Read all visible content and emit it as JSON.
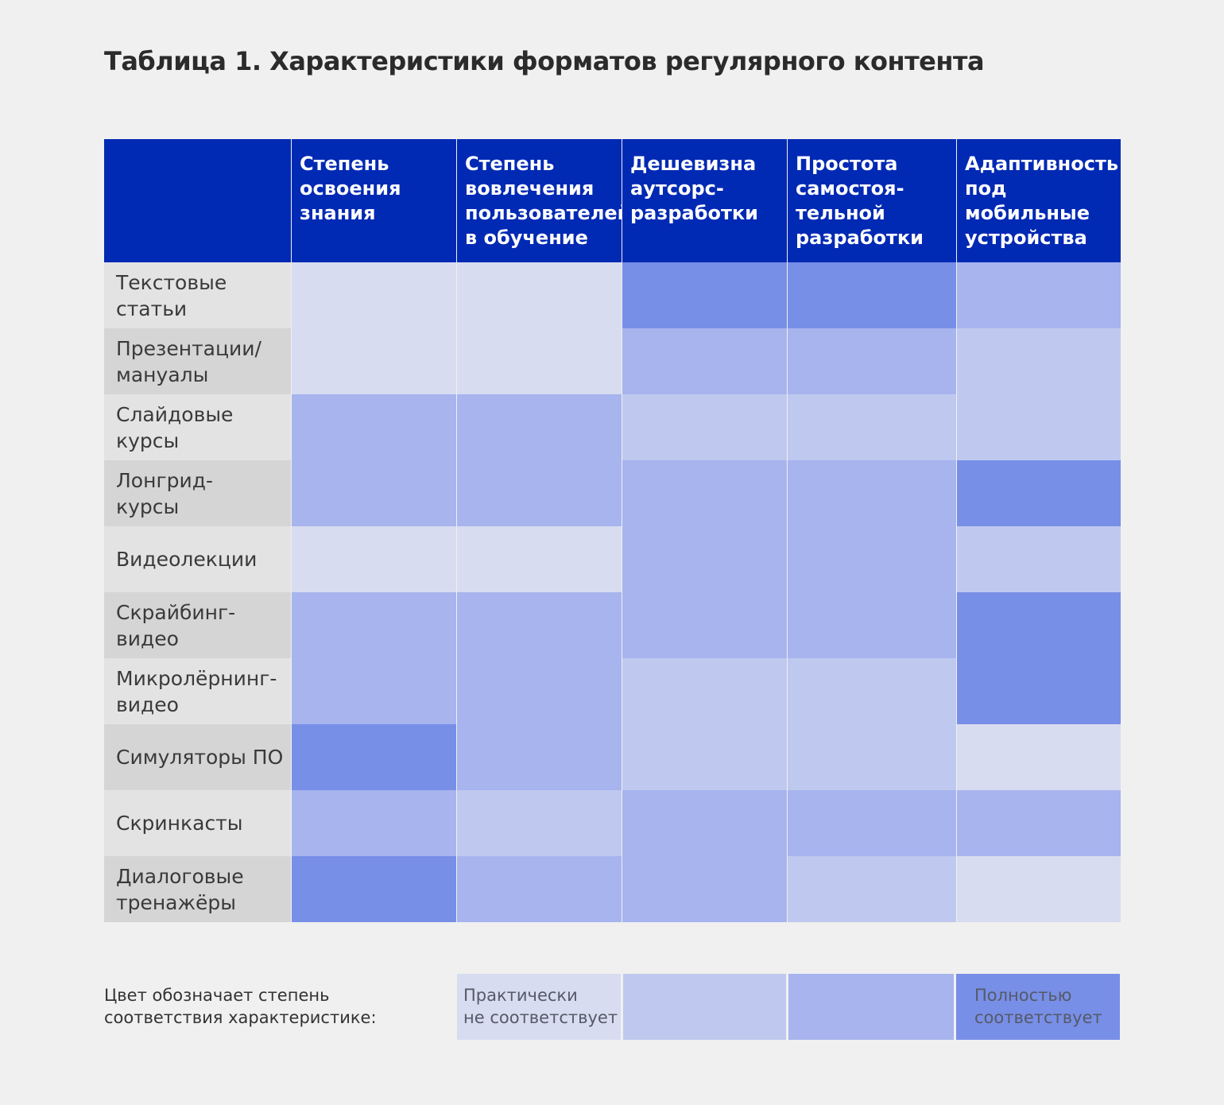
{
  "title": "Таблица 1. Характеристики форматов регулярного контента",
  "chart_data": {
    "type": "heatmap",
    "title": "Таблица 1. Характеристики форматов регулярного контента",
    "columns": [
      "Степень\nосвоения\nзнания",
      "Степень\nвовлечения\nпользователей\nв обучение",
      "Дешевизна\nаутсорс-\nразработки",
      "Простота\nсамостоя-\nтельной\nразработки",
      "Адаптивность\nпод\nмобильные\nустройства"
    ],
    "rows": [
      "Текстовые\nстатьи",
      "Презентации/\nмануалы",
      "Слайдовые\nкурсы",
      "Лонгрид-\nкурсы",
      "Видеолекции",
      "Скрайбинг-\nвидео",
      "Микролёрнинг-\nвидео",
      "Симуляторы ПО",
      "Скринкасты",
      "Диалоговые\nтренажёры"
    ],
    "values": [
      [
        1,
        1,
        4,
        4,
        3
      ],
      [
        1,
        1,
        3,
        3,
        2
      ],
      [
        3,
        3,
        2,
        2,
        2
      ],
      [
        3,
        3,
        3,
        3,
        4
      ],
      [
        1,
        1,
        3,
        3,
        2
      ],
      [
        3,
        3,
        3,
        3,
        4
      ],
      [
        3,
        3,
        2,
        2,
        4
      ],
      [
        4,
        3,
        2,
        2,
        1
      ],
      [
        3,
        2,
        3,
        3,
        3
      ],
      [
        4,
        3,
        3,
        2,
        1
      ]
    ],
    "scale": {
      "min": 1,
      "max": 4,
      "colors": [
        "#d7dcf0",
        "#bfc9ef",
        "#a7b4ee",
        "#788fe8"
      ]
    },
    "legend": {
      "caption": "Цвет обозначает степень\nсоответствия характеристике:",
      "low_label": "Практически\nне соответствует",
      "high_label": "Полностью\nсоответствует"
    }
  },
  "colors": {
    "header_bg": "#0029b4",
    "header_text": "#ffffff",
    "page_bg": "#f0f0f0",
    "row_label_bg_light": "#e3e3e3",
    "row_label_bg_dark": "#d5d5d5"
  }
}
